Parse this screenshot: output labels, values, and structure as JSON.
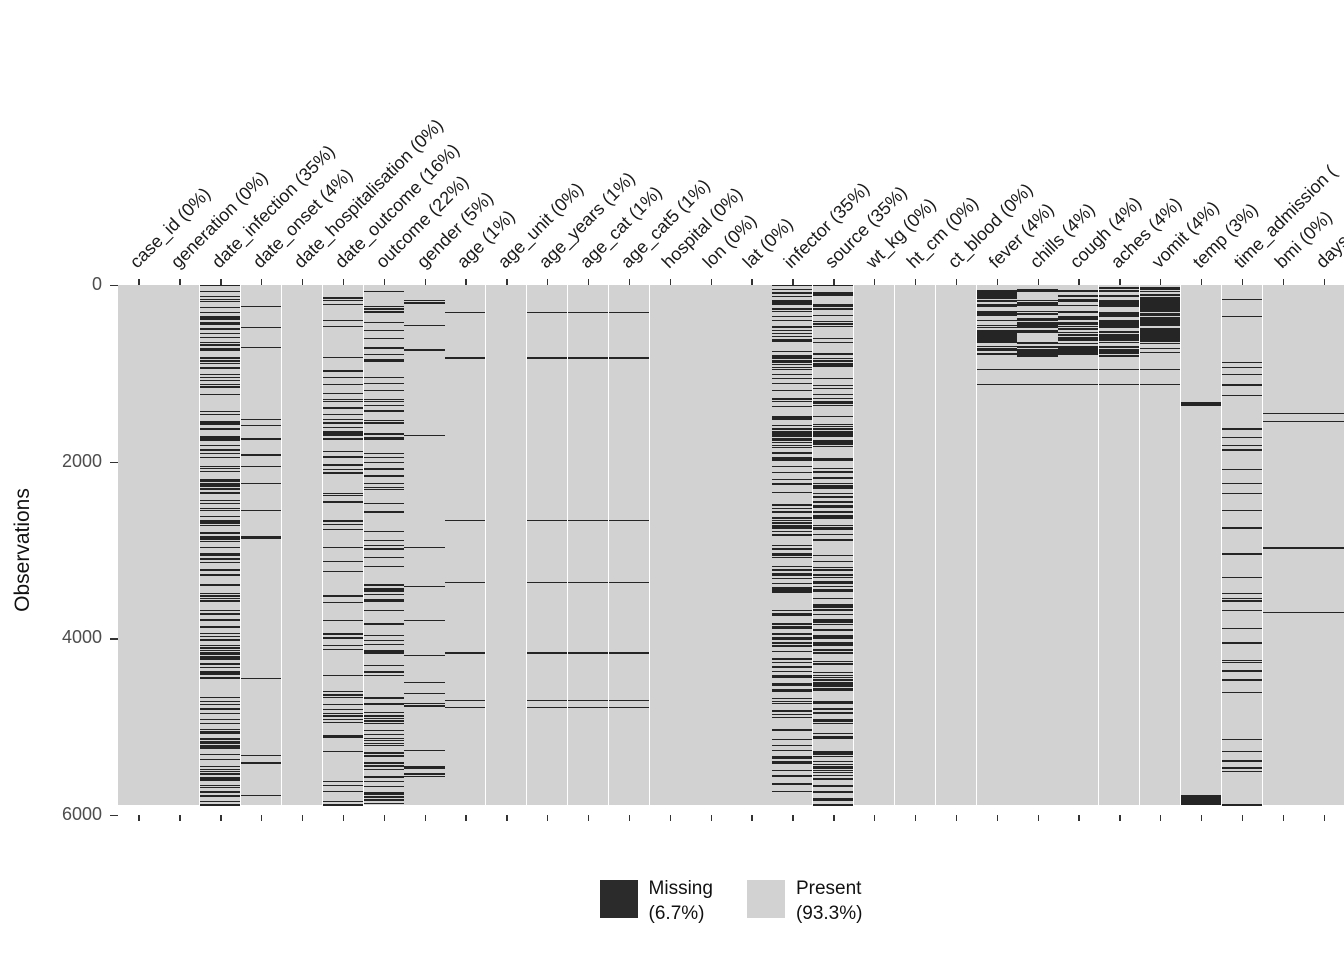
{
  "chart_data": {
    "type": "heatmap",
    "subtype": "missing-data-matrix",
    "ylabel": "Observations",
    "y_ticks": [
      0,
      2000,
      4000,
      6000
    ],
    "y_max": 6000,
    "n_observations": 5888,
    "grid": false,
    "legend_position": "bottom",
    "colors": {
      "present": "#d2d2d2",
      "missing": "#252525"
    },
    "legend": [
      {
        "label": "Missing",
        "percent": "(6.7%)",
        "swatch": "#2b2b2b"
      },
      {
        "label": "Present",
        "percent": "(93.3%)",
        "swatch": "#d2d2d2"
      }
    ],
    "columns": [
      {
        "label": "case_id (0%)",
        "missing_pct": 0,
        "pattern": {}
      },
      {
        "label": "generation (0%)",
        "missing_pct": 0,
        "pattern": {}
      },
      {
        "label": "date_infection (35%)",
        "missing_pct": 35,
        "pattern": {
          "density": 0.35
        }
      },
      {
        "label": "date_onset (4%)",
        "missing_pct": 4,
        "pattern": {
          "density": 0.045
        }
      },
      {
        "label": "date_hospitalisation (0%)",
        "missing_pct": 0,
        "pattern": {}
      },
      {
        "label": "date_outcome (16%)",
        "missing_pct": 16,
        "pattern": {
          "density": 0.16
        }
      },
      {
        "label": "outcome (22%)",
        "missing_pct": 22,
        "pattern": {
          "density": 0.22
        }
      },
      {
        "label": "gender (5%)",
        "missing_pct": 5,
        "pattern": {
          "density": 0.05
        }
      },
      {
        "label": "age (1%)",
        "missing_pct": 1,
        "pattern": {
          "rows": [
            300,
            820,
            2660,
            3360,
            4160,
            4700,
            4780
          ]
        }
      },
      {
        "label": "age_unit (0%)",
        "missing_pct": 0,
        "pattern": {}
      },
      {
        "label": "age_years (1%)",
        "missing_pct": 1,
        "pattern": {
          "rows": [
            300,
            820,
            2660,
            3360,
            4160,
            4700,
            4780
          ]
        }
      },
      {
        "label": "age_cat (1%)",
        "missing_pct": 1,
        "pattern": {
          "rows": [
            300,
            820,
            2660,
            3360,
            4160,
            4700,
            4780
          ]
        }
      },
      {
        "label": "age_cat5 (1%)",
        "missing_pct": 1,
        "pattern": {
          "rows": [
            300,
            820,
            2660,
            3360,
            4160,
            4700,
            4780
          ]
        }
      },
      {
        "label": "hospital (0%)",
        "missing_pct": 0,
        "pattern": {}
      },
      {
        "label": "lon (0%)",
        "missing_pct": 0,
        "pattern": {}
      },
      {
        "label": "lat (0%)",
        "missing_pct": 0,
        "pattern": {}
      },
      {
        "label": "infector (35%)",
        "missing_pct": 35,
        "pattern": {
          "density": 0.35
        }
      },
      {
        "label": "source (35%)",
        "missing_pct": 35,
        "pattern": {
          "density": 0.35
        }
      },
      {
        "label": "wt_kg (0%)",
        "missing_pct": 0,
        "pattern": {}
      },
      {
        "label": "ht_cm (0%)",
        "missing_pct": 0,
        "pattern": {}
      },
      {
        "label": "ct_blood (0%)",
        "missing_pct": 0,
        "pattern": {}
      },
      {
        "label": "fever (4%)",
        "missing_pct": 4,
        "pattern": {
          "bands": [
            {
              "from": 20,
              "to": 800,
              "density": 0.6
            }
          ],
          "rows": [
            950,
            1120
          ]
        }
      },
      {
        "label": "chills (4%)",
        "missing_pct": 4,
        "pattern": {
          "bands": [
            {
              "from": 20,
              "to": 800,
              "density": 0.6
            }
          ],
          "rows": [
            950,
            1120
          ]
        }
      },
      {
        "label": "cough (4%)",
        "missing_pct": 4,
        "pattern": {
          "bands": [
            {
              "from": 20,
              "to": 800,
              "density": 0.6
            }
          ],
          "rows": [
            950,
            1120
          ]
        }
      },
      {
        "label": "aches (4%)",
        "missing_pct": 4,
        "pattern": {
          "bands": [
            {
              "from": 20,
              "to": 800,
              "density": 0.6
            }
          ],
          "rows": [
            950,
            1120
          ]
        }
      },
      {
        "label": "vomit (4%)",
        "missing_pct": 4,
        "pattern": {
          "bands": [
            {
              "from": 20,
              "to": 800,
              "density": 0.6
            }
          ],
          "rows": [
            950,
            1120
          ]
        }
      },
      {
        "label": "temp (3%)",
        "missing_pct": 3,
        "pattern": {
          "blocks": [
            {
              "from": 1325,
              "to": 1365
            },
            {
              "from": 5775,
              "to": 5888
            }
          ]
        }
      },
      {
        "label": "time_admission (",
        "missing_pct": null,
        "pattern": {
          "density": 0.07
        }
      },
      {
        "label": "bmi (0%)",
        "missing_pct": 0,
        "pattern": {
          "rows": [
            1450,
            1540,
            2970,
            3700
          ]
        }
      },
      {
        "label": "days_",
        "missing_pct": null,
        "pattern": {
          "rows": [
            1450,
            1540,
            2970,
            3700
          ]
        }
      }
    ]
  }
}
